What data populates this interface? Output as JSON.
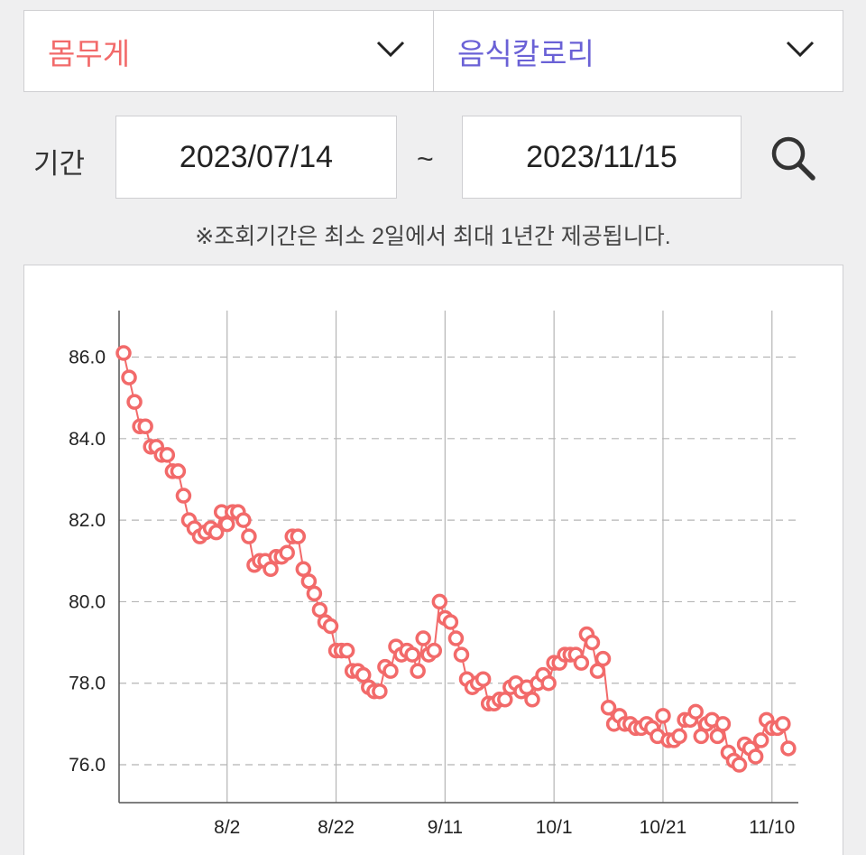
{
  "metric_selector": {
    "value": "몸무게",
    "color": "#f26a6a"
  },
  "compare_selector": {
    "value": "음식칼로리",
    "color": "#6a61d6"
  },
  "period": {
    "label": "기간",
    "start": "2023/07/14",
    "separator": "~",
    "end": "2023/11/15"
  },
  "icons": {
    "dropdown": "chevron-down-icon",
    "search": "search-icon"
  },
  "notice": "※조회기간은 최소 2일에서 최대 1년간 제공됩니다.",
  "chart_data": {
    "type": "line",
    "title": "",
    "xlabel": "",
    "ylabel": "",
    "color": "#f26a6a",
    "grid": {
      "vertical": true,
      "horizontal_dashed": true
    },
    "x_start": "2023-07-14",
    "x_range": [
      "2023-07-14",
      "2023-11-15"
    ],
    "x_ticks": [
      {
        "date": "2023-08-02",
        "label": "8/2"
      },
      {
        "date": "2023-08-22",
        "label": "8/22"
      },
      {
        "date": "2023-09-11",
        "label": "9/11"
      },
      {
        "date": "2023-10-01",
        "label": "10/1"
      },
      {
        "date": "2023-10-21",
        "label": "10/21"
      },
      {
        "date": "2023-11-10",
        "label": "11/10"
      }
    ],
    "y_ticks": [
      "86.0",
      "84.0",
      "82.0",
      "80.0",
      "78.0",
      "76.0"
    ],
    "ylim": [
      75.0,
      87.0
    ],
    "series": [
      {
        "values": [
          [
            "2023-07-14",
            86.1
          ],
          [
            "2023-07-15",
            85.5
          ],
          [
            "2023-07-16",
            84.9
          ],
          [
            "2023-07-17",
            84.3
          ],
          [
            "2023-07-18",
            84.3
          ],
          [
            "2023-07-19",
            83.8
          ],
          [
            "2023-07-20",
            83.8
          ],
          [
            "2023-07-21",
            83.6
          ],
          [
            "2023-07-22",
            83.6
          ],
          [
            "2023-07-23",
            83.2
          ],
          [
            "2023-07-24",
            83.2
          ],
          [
            "2023-07-25",
            82.6
          ],
          [
            "2023-07-26",
            82.0
          ],
          [
            "2023-07-27",
            81.8
          ],
          [
            "2023-07-28",
            81.6
          ],
          [
            "2023-07-29",
            81.7
          ],
          [
            "2023-07-30",
            81.8
          ],
          [
            "2023-07-31",
            81.7
          ],
          [
            "2023-08-01",
            82.2
          ],
          [
            "2023-08-02",
            81.9
          ],
          [
            "2023-08-03",
            82.2
          ],
          [
            "2023-08-04",
            82.2
          ],
          [
            "2023-08-05",
            82.0
          ],
          [
            "2023-08-06",
            81.6
          ],
          [
            "2023-08-07",
            80.9
          ],
          [
            "2023-08-08",
            81.0
          ],
          [
            "2023-08-09",
            81.0
          ],
          [
            "2023-08-10",
            80.8
          ],
          [
            "2023-08-11",
            81.1
          ],
          [
            "2023-08-12",
            81.1
          ],
          [
            "2023-08-13",
            81.2
          ],
          [
            "2023-08-14",
            81.6
          ],
          [
            "2023-08-15",
            81.6
          ],
          [
            "2023-08-16",
            80.8
          ],
          [
            "2023-08-17",
            80.5
          ],
          [
            "2023-08-18",
            80.2
          ],
          [
            "2023-08-19",
            79.8
          ],
          [
            "2023-08-20",
            79.5
          ],
          [
            "2023-08-21",
            79.4
          ],
          [
            "2023-08-22",
            78.8
          ],
          [
            "2023-08-23",
            78.8
          ],
          [
            "2023-08-24",
            78.8
          ],
          [
            "2023-08-25",
            78.3
          ],
          [
            "2023-08-26",
            78.3
          ],
          [
            "2023-08-27",
            78.2
          ],
          [
            "2023-08-28",
            77.9
          ],
          [
            "2023-08-29",
            77.8
          ],
          [
            "2023-08-30",
            77.8
          ],
          [
            "2023-08-31",
            78.4
          ],
          [
            "2023-09-01",
            78.3
          ],
          [
            "2023-09-02",
            78.9
          ],
          [
            "2023-09-03",
            78.7
          ],
          [
            "2023-09-04",
            78.8
          ],
          [
            "2023-09-05",
            78.7
          ],
          [
            "2023-09-06",
            78.3
          ],
          [
            "2023-09-07",
            79.1
          ],
          [
            "2023-09-08",
            78.7
          ],
          [
            "2023-09-09",
            78.8
          ],
          [
            "2023-09-10",
            80.0
          ],
          [
            "2023-09-11",
            79.6
          ],
          [
            "2023-09-12",
            79.5
          ],
          [
            "2023-09-13",
            79.1
          ],
          [
            "2023-09-14",
            78.7
          ],
          [
            "2023-09-15",
            78.1
          ],
          [
            "2023-09-16",
            77.9
          ],
          [
            "2023-09-17",
            78.0
          ],
          [
            "2023-09-18",
            78.1
          ],
          [
            "2023-09-19",
            77.5
          ],
          [
            "2023-09-20",
            77.5
          ],
          [
            "2023-09-21",
            77.6
          ],
          [
            "2023-09-22",
            77.6
          ],
          [
            "2023-09-23",
            77.9
          ],
          [
            "2023-09-24",
            78.0
          ],
          [
            "2023-09-25",
            77.8
          ],
          [
            "2023-09-26",
            77.9
          ],
          [
            "2023-09-27",
            77.6
          ],
          [
            "2023-09-28",
            78.0
          ],
          [
            "2023-09-29",
            78.2
          ],
          [
            "2023-09-30",
            78.0
          ],
          [
            "2023-10-01",
            78.5
          ],
          [
            "2023-10-02",
            78.5
          ],
          [
            "2023-10-03",
            78.7
          ],
          [
            "2023-10-04",
            78.7
          ],
          [
            "2023-10-05",
            78.7
          ],
          [
            "2023-10-06",
            78.5
          ],
          [
            "2023-10-07",
            79.2
          ],
          [
            "2023-10-08",
            79.0
          ],
          [
            "2023-10-09",
            78.3
          ],
          [
            "2023-10-10",
            78.6
          ],
          [
            "2023-10-11",
            77.4
          ],
          [
            "2023-10-12",
            77.0
          ],
          [
            "2023-10-13",
            77.2
          ],
          [
            "2023-10-14",
            77.0
          ],
          [
            "2023-10-15",
            77.0
          ],
          [
            "2023-10-16",
            76.9
          ],
          [
            "2023-10-17",
            76.9
          ],
          [
            "2023-10-18",
            77.0
          ],
          [
            "2023-10-19",
            76.9
          ],
          [
            "2023-10-20",
            76.7
          ],
          [
            "2023-10-21",
            77.2
          ],
          [
            "2023-10-22",
            76.6
          ],
          [
            "2023-10-23",
            76.6
          ],
          [
            "2023-10-24",
            76.7
          ],
          [
            "2023-10-25",
            77.1
          ],
          [
            "2023-10-26",
            77.1
          ],
          [
            "2023-10-27",
            77.3
          ],
          [
            "2023-10-28",
            76.7
          ],
          [
            "2023-10-29",
            77.0
          ],
          [
            "2023-10-30",
            77.1
          ],
          [
            "2023-10-31",
            76.7
          ],
          [
            "2023-11-01",
            77.0
          ],
          [
            "2023-11-02",
            76.3
          ],
          [
            "2023-11-03",
            76.1
          ],
          [
            "2023-11-04",
            76.0
          ],
          [
            "2023-11-05",
            76.5
          ],
          [
            "2023-11-06",
            76.4
          ],
          [
            "2023-11-07",
            76.2
          ],
          [
            "2023-11-08",
            76.6
          ],
          [
            "2023-11-09",
            77.1
          ],
          [
            "2023-11-10",
            76.9
          ],
          [
            "2023-11-11",
            76.9
          ],
          [
            "2023-11-12",
            77.0
          ],
          [
            "2023-11-13",
            76.4
          ]
        ]
      }
    ]
  }
}
